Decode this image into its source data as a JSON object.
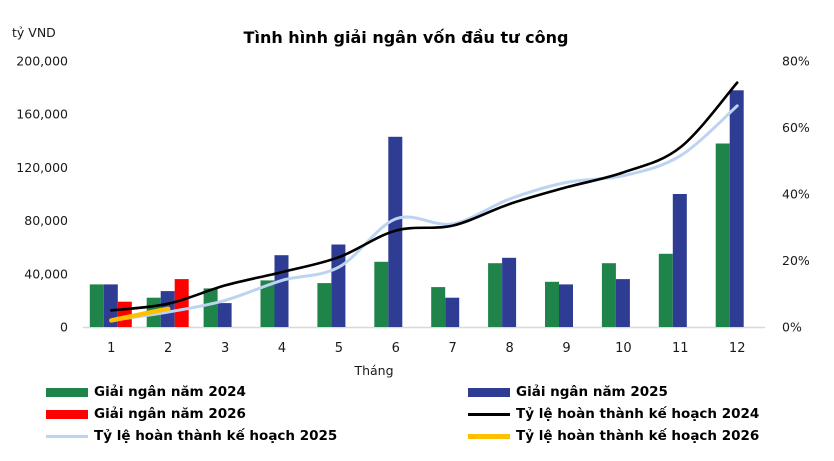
{
  "chart_data": {
    "type": "combo-bar-line",
    "title": "Tình hình giải ngân vốn đầu tư công",
    "xlabel": "Tháng",
    "categories": [
      "1",
      "2",
      "3",
      "4",
      "5",
      "6",
      "7",
      "8",
      "9",
      "10",
      "11",
      "12"
    ],
    "left_axis": {
      "unit": "tỷ VND",
      "tick_labels": [
        "0",
        "40,000",
        "80,000",
        "120,000",
        "160,000",
        "200,000"
      ],
      "tick_values": [
        0,
        40000,
        80000,
        120000,
        160000,
        200000
      ],
      "range": [
        0,
        200000
      ]
    },
    "right_axis": {
      "tick_labels": [
        "0%",
        "20%",
        "40%",
        "60%",
        "80%"
      ],
      "tick_values_pct": [
        0,
        20,
        40,
        60,
        80
      ],
      "range_pct": [
        0,
        80
      ]
    },
    "bar_series": [
      {
        "name": "Giải ngân năm 2024",
        "color": "#1e8449",
        "values": [
          32000,
          22000,
          29000,
          35000,
          33000,
          49000,
          30000,
          48000,
          34000,
          48000,
          55000,
          138000
        ]
      },
      {
        "name": "Giải ngân năm 2025",
        "color": "#2e3d93",
        "values": [
          32000,
          27000,
          18000,
          54000,
          62000,
          143000,
          22000,
          52000,
          32000,
          36000,
          100000,
          178000
        ]
      },
      {
        "name": "Giải ngân năm 2026",
        "color": "#ff0000",
        "values": [
          19000,
          36000,
          null,
          null,
          null,
          null,
          null,
          null,
          null,
          null,
          null,
          null
        ]
      }
    ],
    "line_series": [
      {
        "name": "Tỷ lệ hoàn thành kế hoạch 2025",
        "color": "#bdd3f2",
        "width": 3,
        "values_pct": [
          2,
          4.5,
          8,
          14,
          18,
          32.5,
          31,
          38.5,
          43.5,
          45.5,
          51.5,
          66.5
        ]
      },
      {
        "name": "Tỷ lệ hoàn thành kế hoạch 2024",
        "color": "#000000",
        "width": 2.6,
        "values_pct": [
          5,
          7,
          12.5,
          16.5,
          21,
          29,
          30.5,
          37,
          42,
          46.5,
          54,
          73.5
        ]
      },
      {
        "name": "Tỷ lệ hoàn thành kế hoạch 2026",
        "color": "#ffc000",
        "width": 4.5,
        "values_pct": [
          2,
          5.5,
          null,
          null,
          null,
          null,
          null,
          null,
          null,
          null,
          null,
          null
        ]
      }
    ],
    "grid": "off",
    "baseline_color": "#d9d9d9"
  },
  "legend": {
    "items": [
      {
        "label": "Giải ngân năm 2024",
        "swatch": "bar",
        "color": "#1e8449"
      },
      {
        "label": "Giải ngân năm 2025",
        "swatch": "bar",
        "color": "#2e3d93"
      },
      {
        "label": "Giải ngân năm 2026",
        "swatch": "bar",
        "color": "#ff0000"
      },
      {
        "label": "Tỷ lệ hoàn thành kế hoạch 2024",
        "swatch": "line",
        "color": "#000000",
        "thickness": 3
      },
      {
        "label": "Tỷ lệ hoàn thành kế hoạch 2025",
        "swatch": "line",
        "color": "#bdd3f2",
        "thickness": 3
      },
      {
        "label": "Tỷ lệ hoàn thành kế hoạch 2026",
        "swatch": "line",
        "color": "#ffc000",
        "thickness": 5
      }
    ]
  }
}
